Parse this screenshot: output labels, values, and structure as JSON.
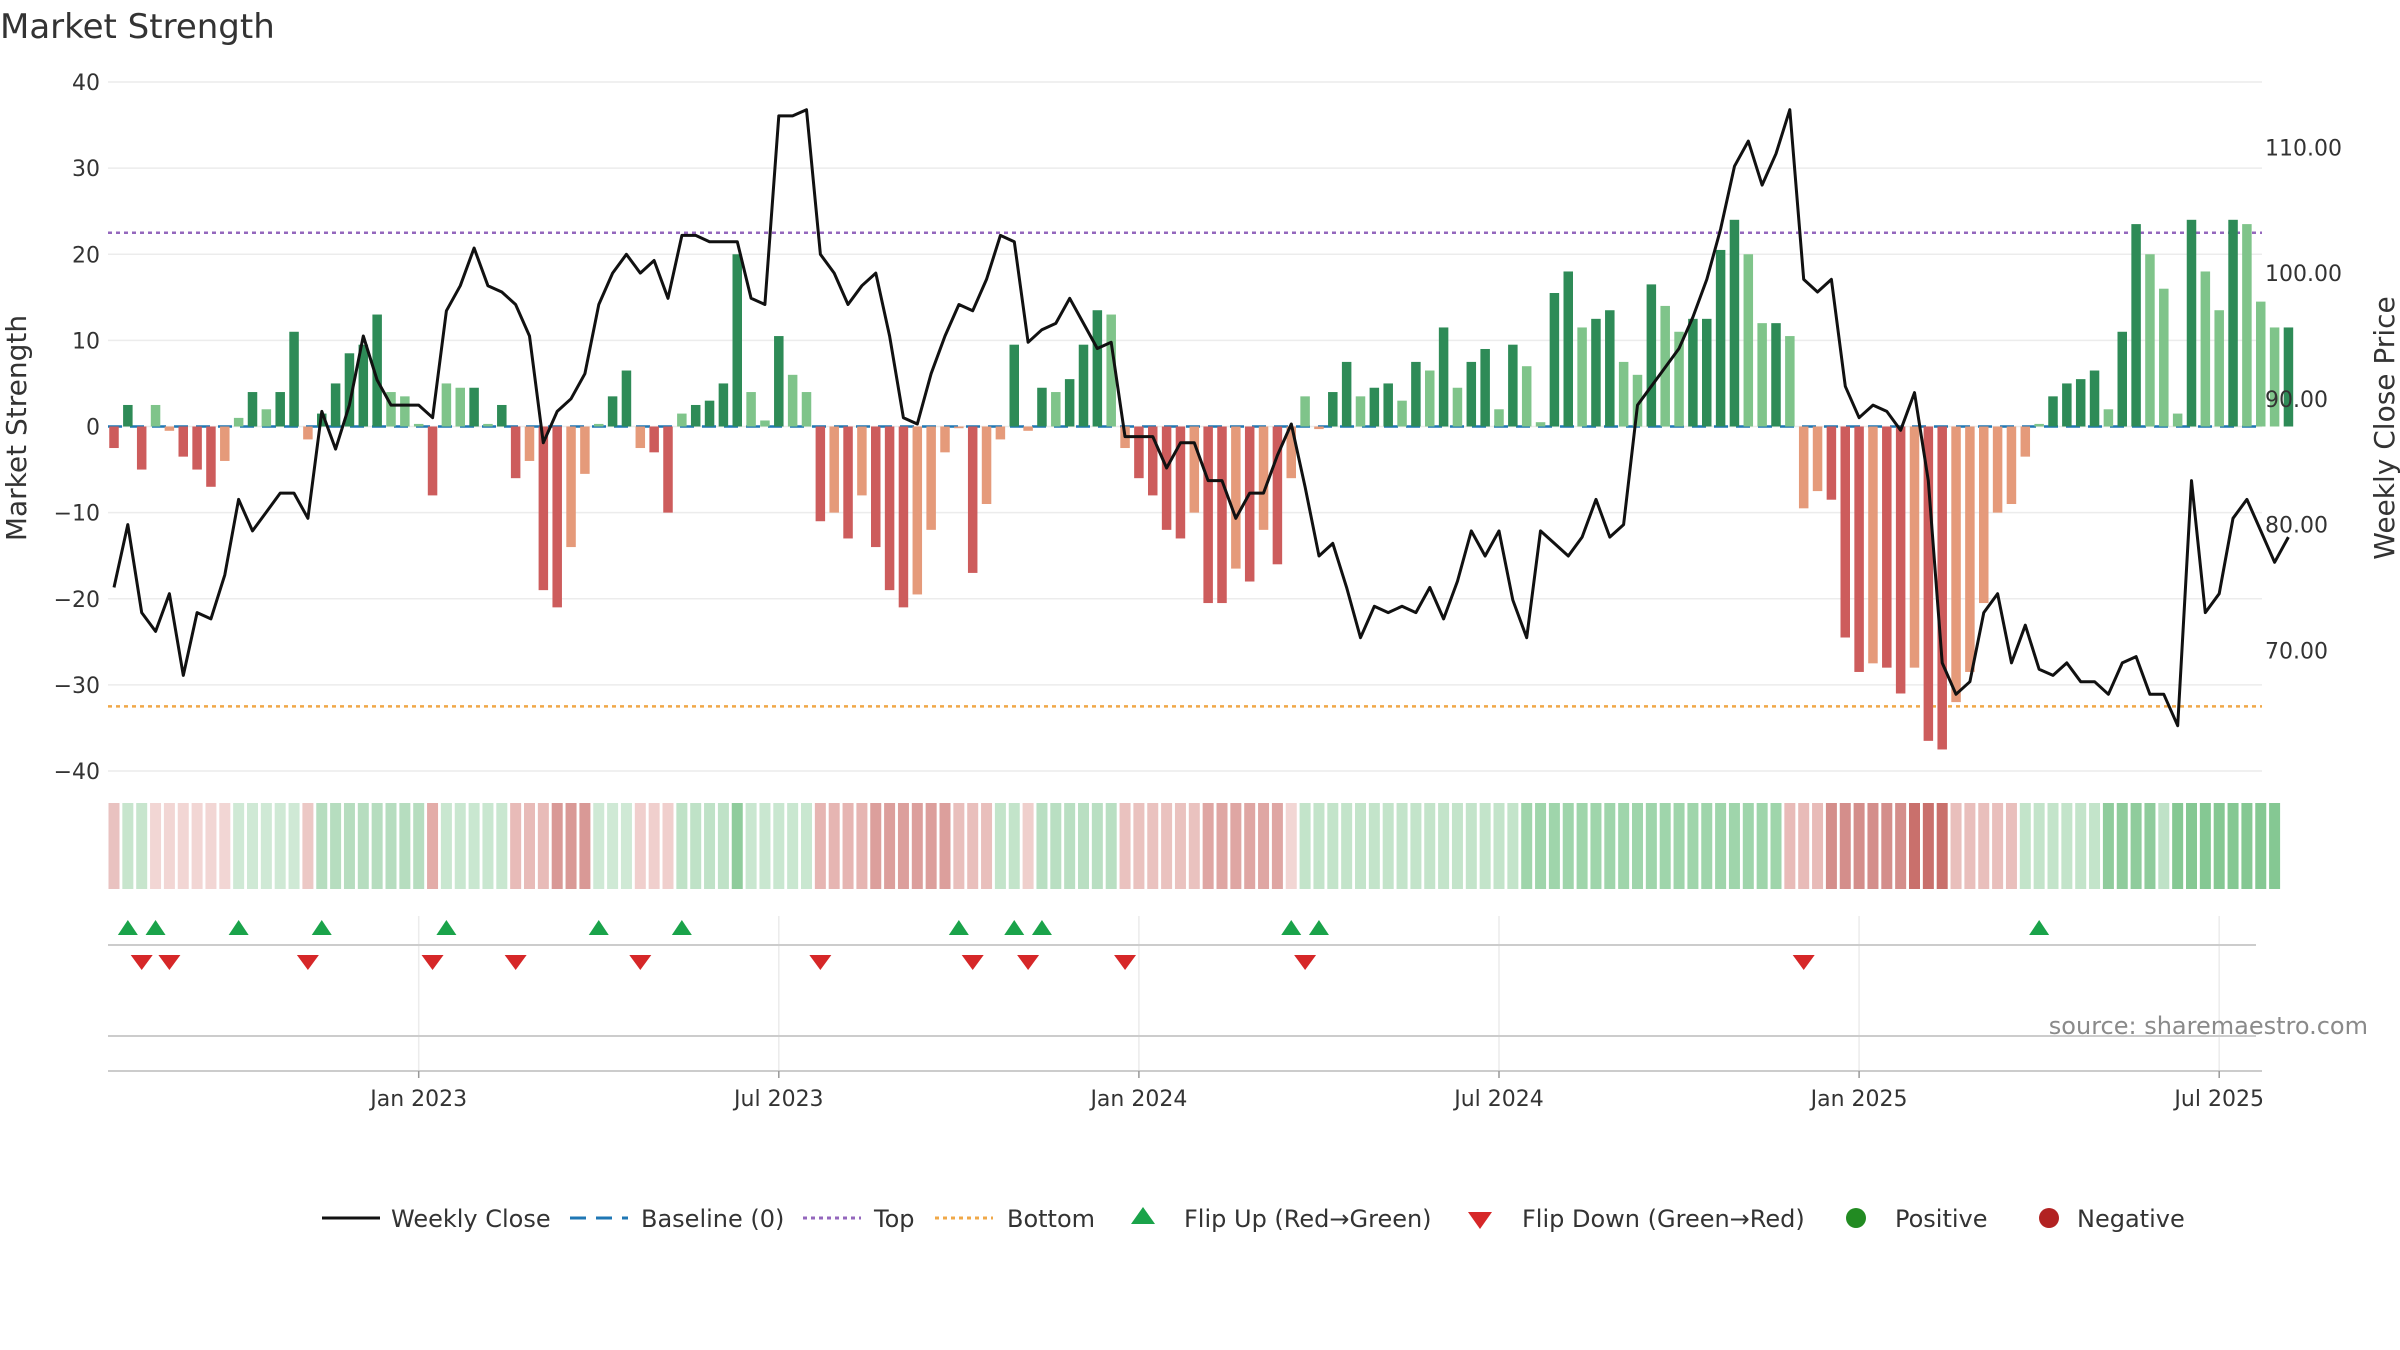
{
  "chart_data": {
    "type": "bar",
    "title": "Market Strength",
    "ylabel": "Market Strength",
    "y2label": "Weekly Close Price",
    "ylim": [
      -40,
      40
    ],
    "y_ticks": [
      40,
      30,
      20,
      10,
      0,
      -10,
      -20,
      -30,
      -40
    ],
    "y_tick_labels": [
      "40",
      "30",
      "20",
      "10",
      "0",
      "−10",
      "−20",
      "−30",
      "−40"
    ],
    "y2lim": [
      60.4,
      115.2
    ],
    "y2_ticks": [
      110,
      100,
      90,
      80,
      70
    ],
    "y2_tick_labels": [
      "110.00",
      "100.00",
      "90.00",
      "80.00",
      "70.00"
    ],
    "x_tick_labels": [
      "Jan 2023",
      "Jul 2023",
      "Jan 2024",
      "Jul 2024",
      "Jan 2025",
      "Jul 2025"
    ],
    "x_tick_weeks": [
      22,
      48,
      74,
      100,
      126,
      152
    ],
    "top_level": 22.5,
    "bottom_level": -32.5,
    "baseline": 0,
    "strength": [
      -2.5,
      2.5,
      -5,
      2.5,
      -0.5,
      -3.5,
      -5,
      -7,
      -4,
      1,
      4,
      2,
      4,
      11,
      -1.5,
      1.5,
      5,
      8.5,
      9.5,
      13,
      4,
      3.5,
      0.3,
      -8,
      5,
      4.5,
      4.5,
      0.3,
      2.5,
      -6,
      -4,
      -19,
      -21,
      -14,
      -5.5,
      0.3,
      3.5,
      6.5,
      -2.5,
      -3,
      -10,
      1.5,
      2.5,
      3,
      5,
      20,
      4,
      0.7,
      10.5,
      6,
      4,
      -11,
      -10,
      -13,
      -8,
      -14,
      -19,
      -21,
      -19.5,
      -12,
      -3,
      -0.2,
      -17,
      -9,
      -1.5,
      9.5,
      -0.5,
      4.5,
      4,
      5.5,
      9.5,
      13.5,
      13,
      -2.5,
      -6,
      -8,
      -12,
      -13,
      -10,
      -20.5,
      -20.5,
      -16.5,
      -18,
      -12,
      -16,
      -6,
      3.5,
      -0.3,
      4,
      7.5,
      3.5,
      4.5,
      5,
      3,
      7.5,
      6.5,
      11.5,
      4.5,
      7.5,
      9,
      2,
      9.5,
      7,
      0.5,
      15.5,
      18,
      11.5,
      12.5,
      13.5,
      7.5,
      6,
      16.5,
      14,
      11,
      12.5,
      12.5,
      20.5,
      24,
      20,
      12,
      12,
      10.5,
      -9.5,
      -7.5,
      -8.5,
      -24.5,
      -28.5,
      -27.5,
      -28,
      -31,
      -28,
      -36.5,
      -37.5,
      -32,
      -28.5,
      -20.5,
      -10,
      -9,
      -3.5,
      0.3,
      3.5,
      5,
      5.5,
      6.5,
      2,
      11,
      23.5,
      20,
      16,
      1.5,
      24,
      18,
      13.5,
      24,
      23.5,
      14.5,
      11.5,
      11.5
    ],
    "weekly_close": [
      75,
      80,
      73,
      71.5,
      74.5,
      68,
      73,
      72.5,
      76,
      82,
      79.5,
      81,
      82.5,
      82.5,
      80.5,
      89,
      86,
      89.5,
      95,
      91.5,
      89.5,
      89.5,
      89.5,
      88.5,
      97,
      99,
      102,
      99,
      98.5,
      97.5,
      95,
      86.5,
      89,
      90,
      92,
      97.5,
      100,
      101.5,
      100,
      101,
      98,
      103,
      103,
      102.5,
      102.5,
      102.5,
      98,
      97.5,
      112.5,
      112.5,
      113,
      101.5,
      100,
      97.5,
      99,
      100,
      95,
      88.5,
      88,
      92,
      95,
      97.5,
      97,
      99.5,
      103,
      102.5,
      94.5,
      95.5,
      96,
      98,
      96,
      94,
      94.5,
      87,
      87,
      87,
      84.5,
      86.5,
      86.5,
      83.5,
      83.5,
      80.5,
      82.5,
      82.5,
      85.5,
      88,
      83,
      77.5,
      78.5,
      75,
      71,
      73.5,
      73,
      73.5,
      73,
      75,
      72.5,
      75.5,
      79.5,
      77.5,
      79.5,
      74,
      71,
      79.5,
      78.5,
      77.5,
      79,
      82,
      79,
      80,
      89.5,
      91,
      92.5,
      94,
      96.5,
      99.5,
      103.5,
      108.5,
      110.5,
      107,
      109.5,
      113,
      99.5,
      98.5,
      99.5,
      91,
      88.5,
      89.5,
      89,
      87.5,
      90.5,
      83.5,
      69,
      66.5,
      67.5,
      73,
      74.5,
      69,
      72,
      68.5,
      68,
      69,
      67.5,
      67.5,
      66.5,
      69,
      69.5,
      66.5,
      66.5,
      64,
      83.5,
      73,
      74.5,
      80.5,
      82,
      79.5,
      77,
      79
    ],
    "stripe_pattern": [
      {
        "from": 0,
        "to": 1,
        "color": "#e9c2c0"
      },
      {
        "from": 1,
        "to": 3,
        "color": "#c7e5cd"
      },
      {
        "from": 3,
        "to": 9,
        "color": "#f2d6d4"
      },
      {
        "from": 9,
        "to": 14,
        "color": "#cfe9d5"
      },
      {
        "from": 14,
        "to": 15,
        "color": "#ecc8c5"
      },
      {
        "from": 15,
        "to": 23,
        "color": "#b6ddbf"
      },
      {
        "from": 23,
        "to": 24,
        "color": "#e3aca8"
      },
      {
        "from": 24,
        "to": 29,
        "color": "#c9e7d0"
      },
      {
        "from": 29,
        "to": 32,
        "color": "#e8bbb8"
      },
      {
        "from": 32,
        "to": 35,
        "color": "#d99996"
      },
      {
        "from": 35,
        "to": 38,
        "color": "#cfe9d5"
      },
      {
        "from": 38,
        "to": 41,
        "color": "#f0cfcd"
      },
      {
        "from": 41,
        "to": 45,
        "color": "#bfe2c7"
      },
      {
        "from": 45,
        "to": 46,
        "color": "#8fcc9c"
      },
      {
        "from": 46,
        "to": 51,
        "color": "#c9e7d0"
      },
      {
        "from": 51,
        "to": 55,
        "color": "#e6b5b2"
      },
      {
        "from": 55,
        "to": 61,
        "color": "#dc9f9c"
      },
      {
        "from": 61,
        "to": 64,
        "color": "#e9bfbc"
      },
      {
        "from": 64,
        "to": 66,
        "color": "#c3e4ca"
      },
      {
        "from": 66,
        "to": 67,
        "color": "#efcfcc"
      },
      {
        "from": 67,
        "to": 73,
        "color": "#b9dfc2"
      },
      {
        "from": 73,
        "to": 79,
        "color": "#eac2bf"
      },
      {
        "from": 79,
        "to": 85,
        "color": "#dfa6a3"
      },
      {
        "from": 85,
        "to": 86,
        "color": "#f2d6d4"
      },
      {
        "from": 86,
        "to": 102,
        "color": "#c3e4ca"
      },
      {
        "from": 102,
        "to": 121,
        "color": "#9fd5ab"
      },
      {
        "from": 121,
        "to": 124,
        "color": "#e8bbb8"
      },
      {
        "from": 124,
        "to": 130,
        "color": "#d48e8b"
      },
      {
        "from": 130,
        "to": 133,
        "color": "#c9706c"
      },
      {
        "from": 133,
        "to": 138,
        "color": "#e9bfbc"
      },
      {
        "from": 138,
        "to": 144,
        "color": "#c3e4ca"
      },
      {
        "from": 144,
        "to": 148,
        "color": "#8fcc9c"
      },
      {
        "from": 148,
        "to": 149,
        "color": "#bfe2c7"
      },
      {
        "from": 149,
        "to": 157,
        "color": "#85c893"
      }
    ],
    "flip_up_weeks": [
      1,
      3,
      9,
      15,
      24,
      35,
      41,
      61,
      65,
      67,
      85,
      87,
      139
    ],
    "flip_down_weeks": [
      2,
      4,
      14,
      23,
      29,
      38,
      51,
      62,
      66,
      73,
      86,
      122
    ],
    "colors": {
      "pos_strong": "#2e8b57",
      "pos_light": "#7fc48a",
      "neg_strong": "#cd5c5c",
      "neg_light": "#e59a7a",
      "line": "#111111",
      "baseline": "#1f77b4",
      "top": "#9467bd",
      "bottom": "#f0a848",
      "flip_up": "#1aa34a",
      "flip_down": "#d62728",
      "positive_dot": "#228b22",
      "negative_dot": "#b22222"
    },
    "legend": [
      {
        "label": "Weekly Close",
        "kind": "line"
      },
      {
        "label": "Baseline (0)",
        "kind": "dash"
      },
      {
        "label": "Top",
        "kind": "dot-purple"
      },
      {
        "label": "Bottom",
        "kind": "dot-orange"
      },
      {
        "label": "Flip Up (Red→Green)",
        "kind": "tri-up"
      },
      {
        "label": "Flip Down (Green→Red)",
        "kind": "tri-down"
      },
      {
        "label": "Positive",
        "kind": "dot-pos"
      },
      {
        "label": "Negative",
        "kind": "dot-neg"
      }
    ],
    "source": "source: sharemaestro.com"
  }
}
